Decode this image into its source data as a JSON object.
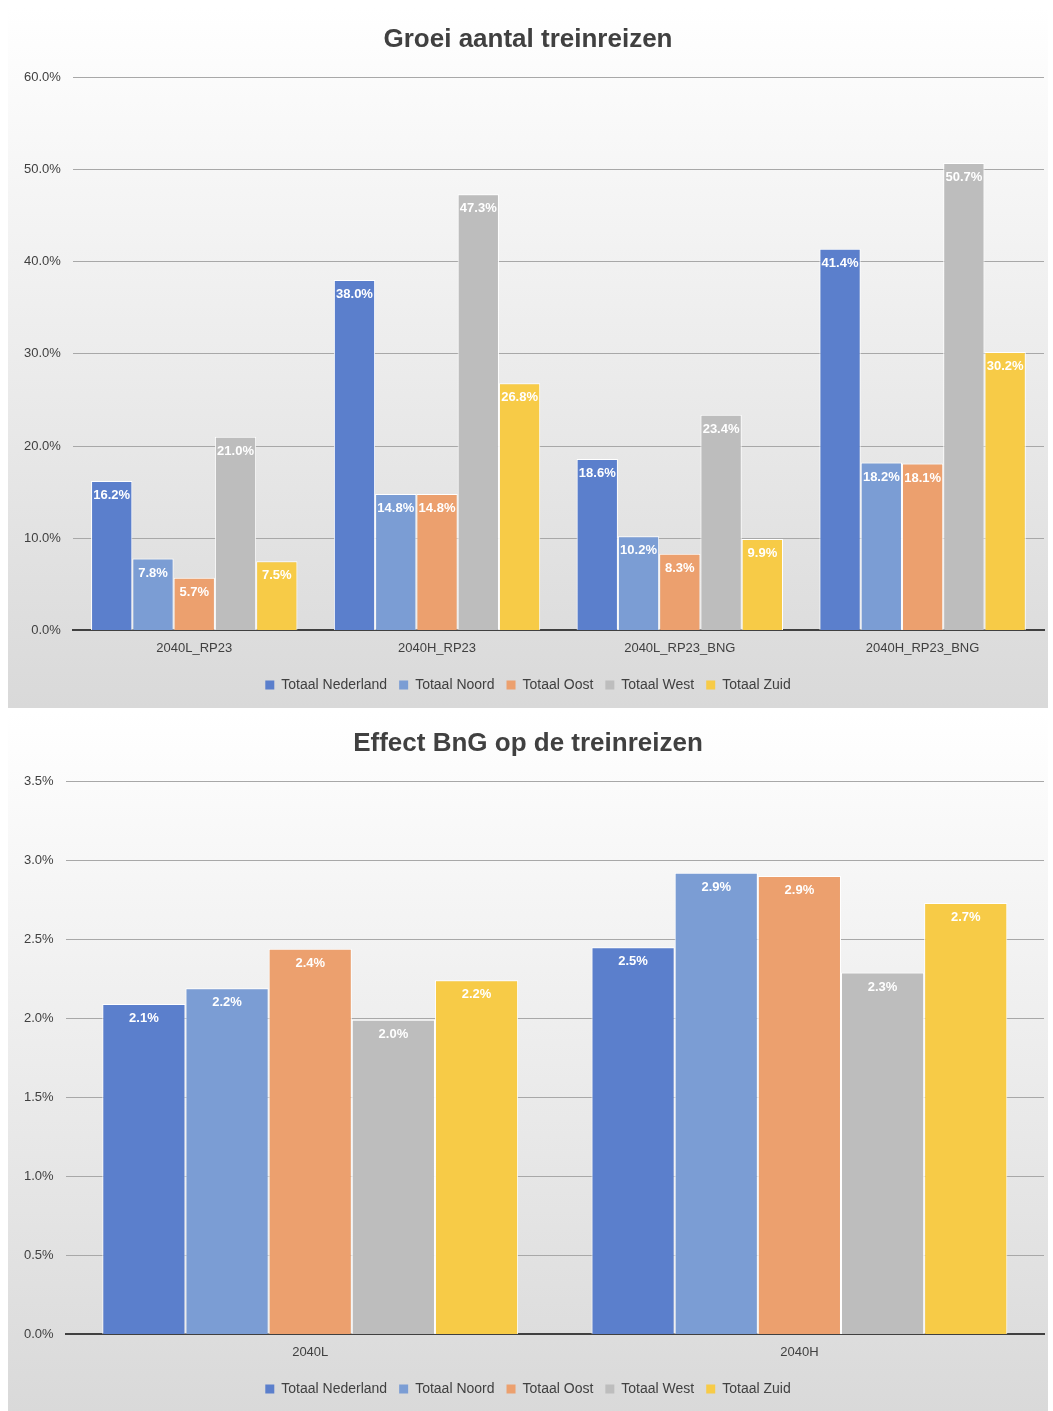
{
  "chart_data": [
    {
      "type": "bar",
      "title": "Groei aantal treinreizen",
      "categories": [
        "2040L_RP23",
        "2040H_RP23",
        "2040L_RP23_BNG",
        "2040H_RP23_BNG"
      ],
      "series": [
        {
          "name": "Totaal Nederland",
          "color": "#5b7fcc",
          "values": [
            16.2,
            38.0,
            18.6,
            41.4
          ],
          "value_labels": [
            "16.2%",
            "38.0%",
            "18.6%",
            "41.4%"
          ]
        },
        {
          "name": "Totaal Noord",
          "color": "#7b9dd4",
          "values": [
            7.8,
            14.8,
            10.2,
            18.2
          ],
          "value_labels": [
            "7.8%",
            "14.8%",
            "10.2%",
            "18.2%"
          ]
        },
        {
          "name": "Totaal Oost",
          "color": "#eca06e",
          "values": [
            5.7,
            14.8,
            8.3,
            18.1
          ],
          "value_labels": [
            "5.7%",
            "14.8%",
            "8.3%",
            "18.1%"
          ]
        },
        {
          "name": "Totaal West",
          "color": "#bdbdbd",
          "values": [
            21.0,
            47.3,
            23.4,
            50.7
          ],
          "value_labels": [
            "21.0%",
            "47.3%",
            "23.4%",
            "50.7%"
          ]
        },
        {
          "name": "Totaal Zuid",
          "color": "#f7cb47",
          "values": [
            7.5,
            26.8,
            9.9,
            30.2
          ],
          "value_labels": [
            "7.5%",
            "26.8%",
            "9.9%",
            "30.2%"
          ]
        }
      ],
      "ylim": [
        0,
        60
      ],
      "yticks": [
        {
          "value": 0,
          "label": "0.0%"
        },
        {
          "value": 10,
          "label": "10.0%"
        },
        {
          "value": 20,
          "label": "20.0%"
        },
        {
          "value": 30,
          "label": "30.0%"
        },
        {
          "value": 40,
          "label": "40.0%"
        },
        {
          "value": 50,
          "label": "50.0%"
        },
        {
          "value": 60,
          "label": "60.0%"
        }
      ],
      "grid": "y",
      "legend": "bottom"
    },
    {
      "type": "bar",
      "title": "Effect BnG op de treinreizen",
      "categories": [
        "2040L",
        "2040H"
      ],
      "series": [
        {
          "name": "Totaal Nederland",
          "color": "#5b7fcc",
          "values": [
            2.09,
            2.45
          ],
          "value_labels": [
            "2.1%",
            "2.5%"
          ]
        },
        {
          "name": "Totaal Noord",
          "color": "#7b9dd4",
          "values": [
            2.19,
            2.92
          ],
          "value_labels": [
            "2.2%",
            "2.9%"
          ]
        },
        {
          "name": "Totaal Oost",
          "color": "#eca06e",
          "values": [
            2.44,
            2.9
          ],
          "value_labels": [
            "2.4%",
            "2.9%"
          ]
        },
        {
          "name": "Totaal West",
          "color": "#bdbdbd",
          "values": [
            1.99,
            2.29
          ],
          "value_labels": [
            "2.0%",
            "2.3%"
          ]
        },
        {
          "name": "Totaal Zuid",
          "color": "#f7cb47",
          "values": [
            2.24,
            2.73
          ],
          "value_labels": [
            "2.2%",
            "2.7%"
          ]
        }
      ],
      "ylim": [
        0,
        3.5
      ],
      "yticks": [
        {
          "value": 0,
          "label": "0.0%"
        },
        {
          "value": 0.5,
          "label": "0.5%"
        },
        {
          "value": 1,
          "label": "1.0%"
        },
        {
          "value": 1.5,
          "label": "1.5%"
        },
        {
          "value": 2,
          "label": "2.0%"
        },
        {
          "value": 2.5,
          "label": "2.5%"
        },
        {
          "value": 3,
          "label": "3.0%"
        },
        {
          "value": 3.5,
          "label": "3.5%"
        }
      ],
      "grid": "y",
      "legend": "bottom"
    }
  ]
}
